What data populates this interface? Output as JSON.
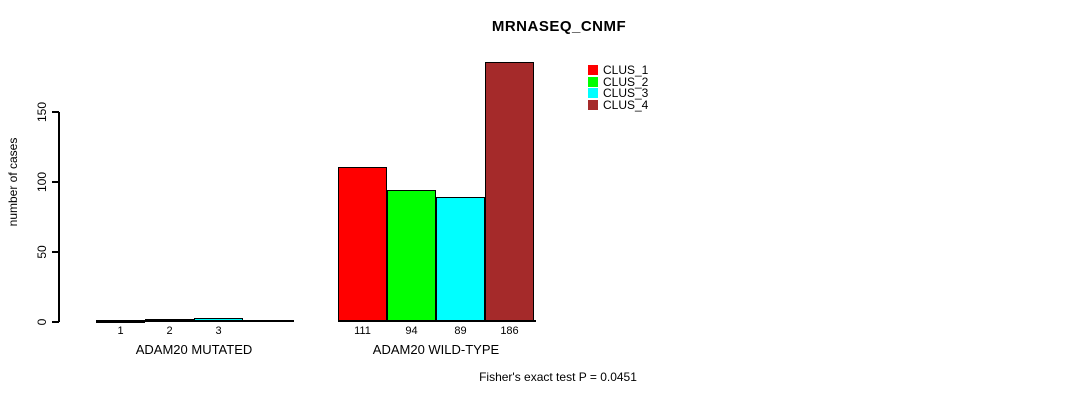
{
  "chart_data": {
    "type": "bar",
    "title": "MRNASEQ_CNMF",
    "ylabel": "number of cases",
    "xlabel": "",
    "yticks": [
      0,
      50,
      100,
      150
    ],
    "ylim": [
      0,
      190
    ],
    "grid": false,
    "legend_position": "top-right",
    "series": [
      {
        "name": "CLUS_1",
        "color": "#ff0000"
      },
      {
        "name": "CLUS_2",
        "color": "#00ff00"
      },
      {
        "name": "CLUS_3",
        "color": "#00ffff"
      },
      {
        "name": "CLUS_4",
        "color": "#a52a2a"
      }
    ],
    "groups": [
      {
        "label": "ADAM20 MUTATED",
        "values": [
          1,
          2,
          3,
          0
        ],
        "bar_labels": [
          "1",
          "2",
          "3",
          ""
        ]
      },
      {
        "label": "ADAM20 WILD-TYPE",
        "values": [
          111,
          94,
          89,
          186
        ],
        "bar_labels": [
          "111",
          "94",
          "89",
          "186"
        ]
      }
    ],
    "annotation": "Fisher's exact test P = 0.0451"
  }
}
